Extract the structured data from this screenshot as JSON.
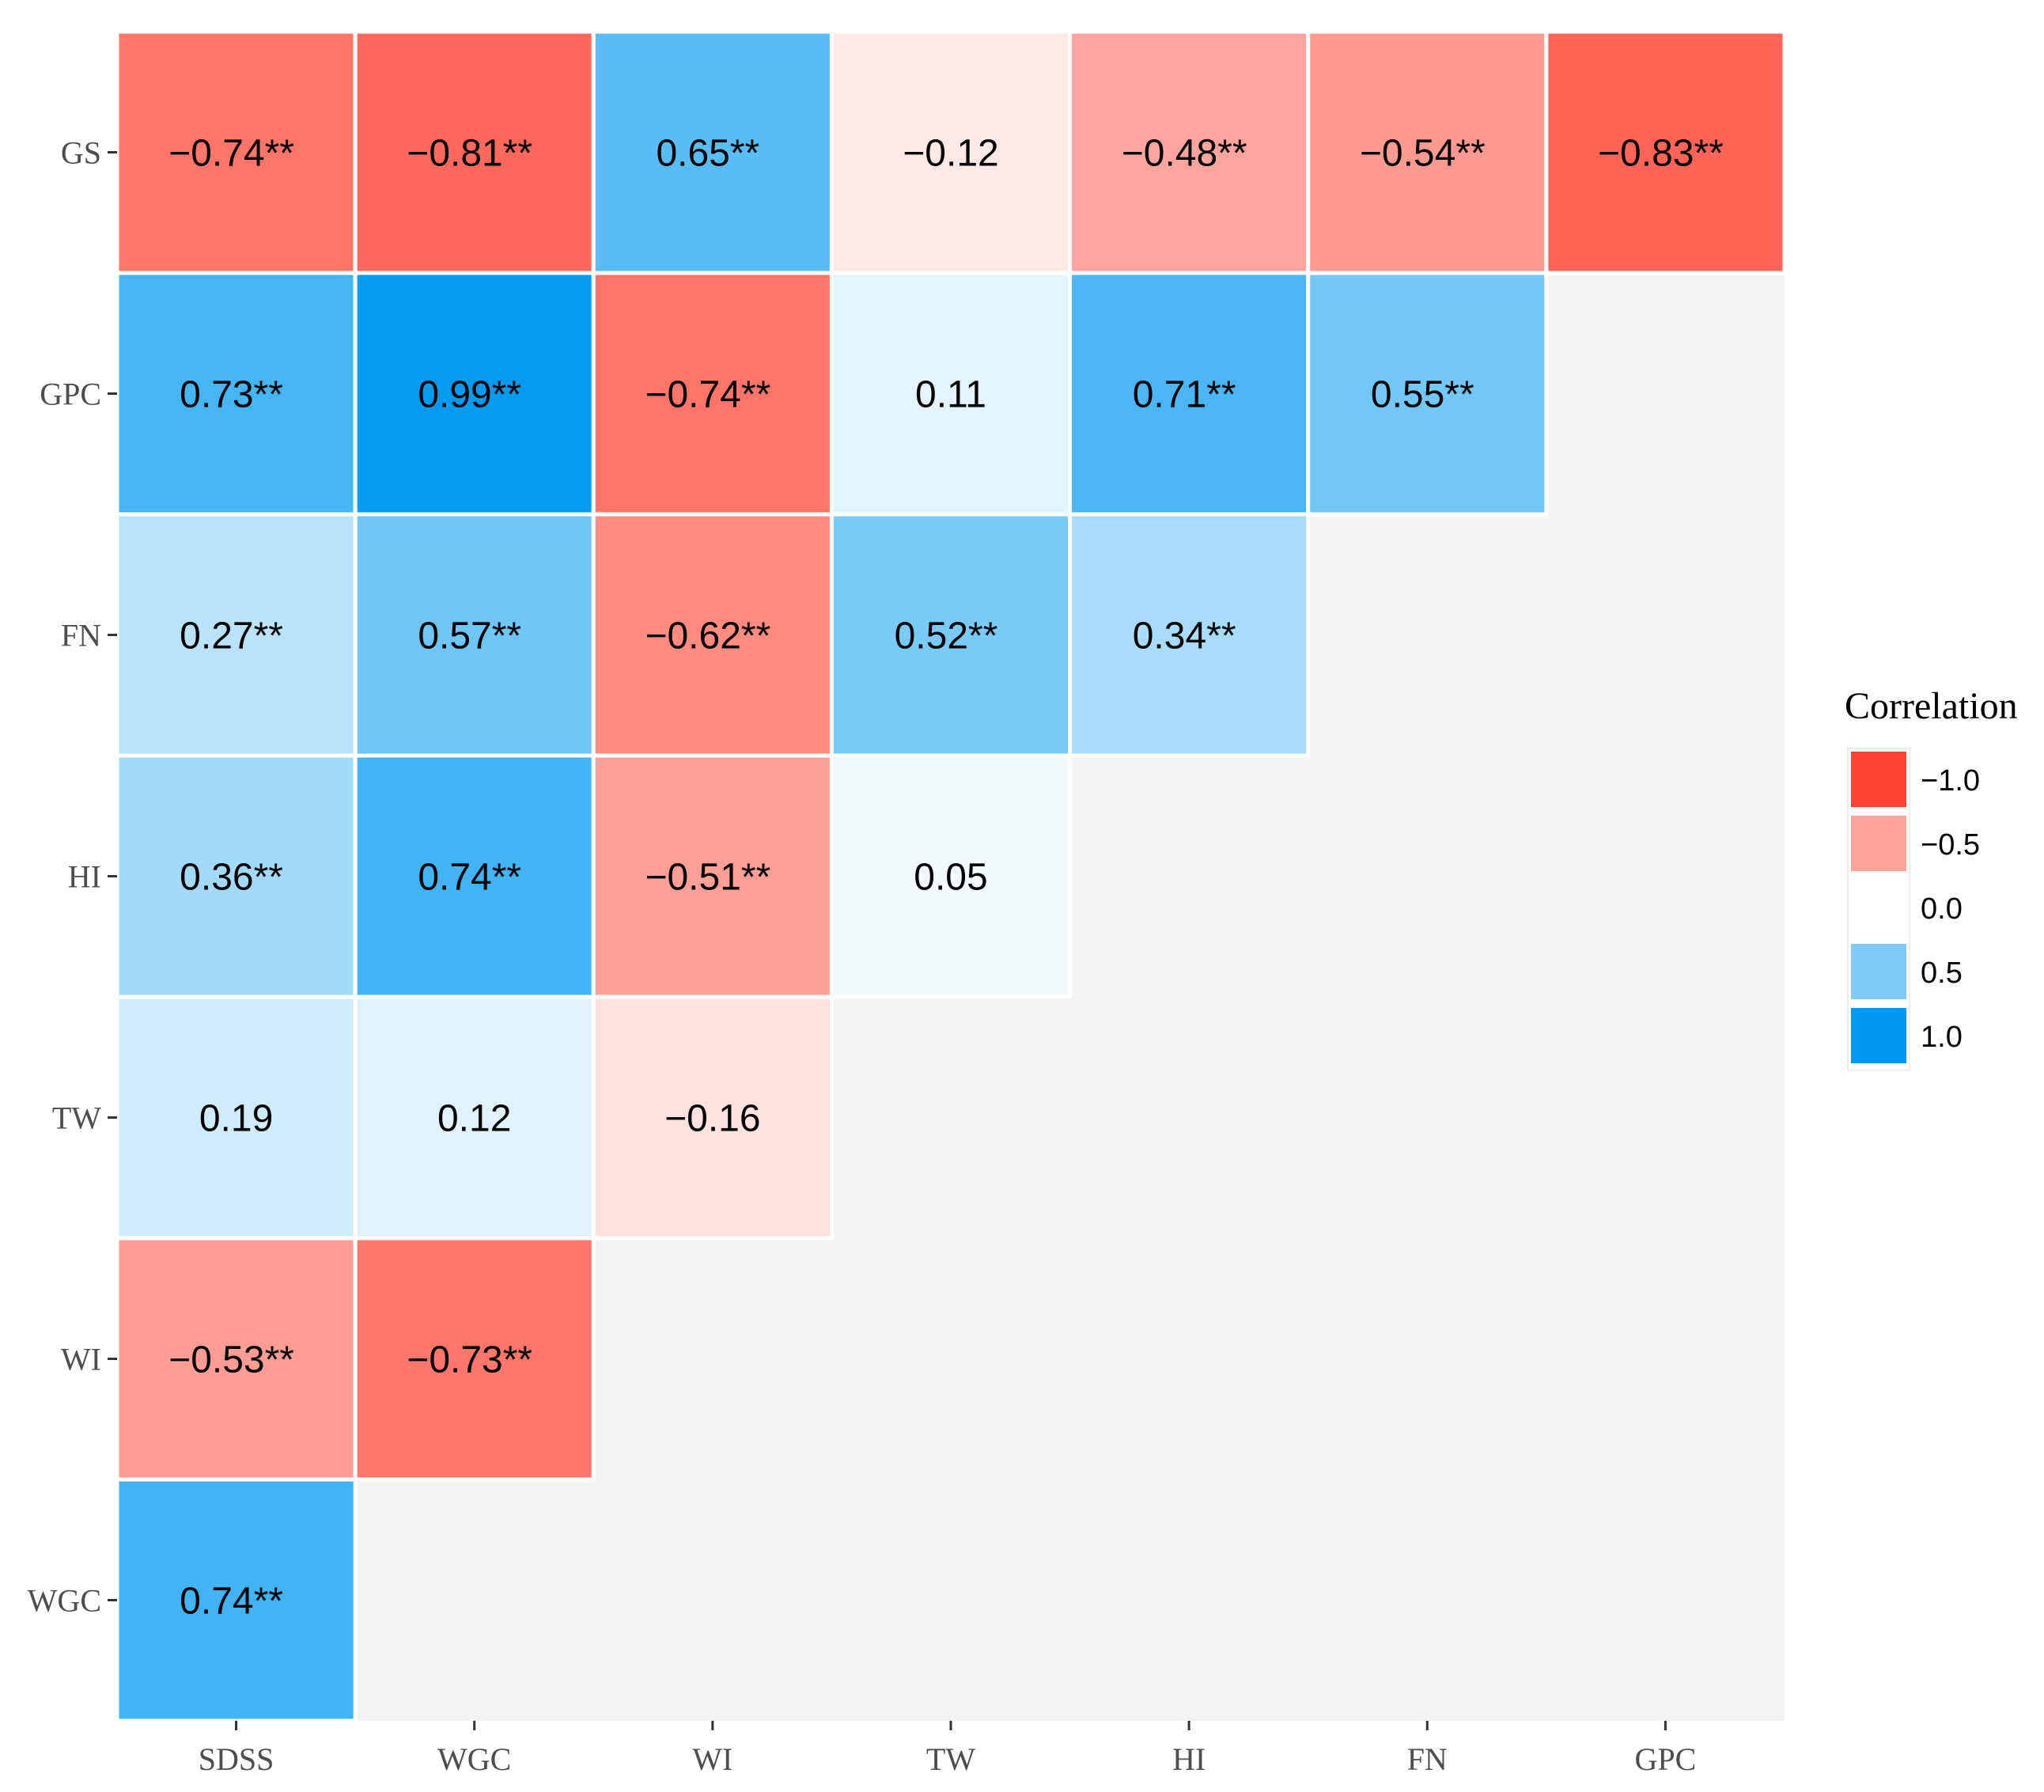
{
  "chart_data": {
    "type": "heatmap",
    "title": "",
    "xlabel": "",
    "ylabel": "",
    "x_categories": [
      "SDSS",
      "WGC",
      "WI",
      "TW",
      "HI",
      "FN",
      "GPC"
    ],
    "y_categories": [
      "GS",
      "GPC",
      "FN",
      "HI",
      "TW",
      "WI",
      "WGC"
    ],
    "cells": [
      {
        "x": "SDSS",
        "y": "GS",
        "value": -0.74,
        "label": "−0.74**"
      },
      {
        "x": "WGC",
        "y": "GS",
        "value": -0.81,
        "label": "−0.81**"
      },
      {
        "x": "WI",
        "y": "GS",
        "value": 0.65,
        "label": "0.65**"
      },
      {
        "x": "TW",
        "y": "GS",
        "value": -0.12,
        "label": "−0.12"
      },
      {
        "x": "HI",
        "y": "GS",
        "value": -0.48,
        "label": "−0.48**"
      },
      {
        "x": "FN",
        "y": "GS",
        "value": -0.54,
        "label": "−0.54**"
      },
      {
        "x": "GPC",
        "y": "GS",
        "value": -0.83,
        "label": "−0.83**"
      },
      {
        "x": "SDSS",
        "y": "GPC",
        "value": 0.73,
        "label": "0.73**"
      },
      {
        "x": "WGC",
        "y": "GPC",
        "value": 0.99,
        "label": "0.99**"
      },
      {
        "x": "WI",
        "y": "GPC",
        "value": -0.74,
        "label": "−0.74**"
      },
      {
        "x": "TW",
        "y": "GPC",
        "value": 0.11,
        "label": "0.11"
      },
      {
        "x": "HI",
        "y": "GPC",
        "value": 0.71,
        "label": "0.71**"
      },
      {
        "x": "FN",
        "y": "GPC",
        "value": 0.55,
        "label": "0.55**"
      },
      {
        "x": "SDSS",
        "y": "FN",
        "value": 0.27,
        "label": "0.27**"
      },
      {
        "x": "WGC",
        "y": "FN",
        "value": 0.57,
        "label": "0.57**"
      },
      {
        "x": "WI",
        "y": "FN",
        "value": -0.62,
        "label": "−0.62**"
      },
      {
        "x": "TW",
        "y": "FN",
        "value": 0.52,
        "label": "0.52**"
      },
      {
        "x": "HI",
        "y": "FN",
        "value": 0.34,
        "label": "0.34**"
      },
      {
        "x": "SDSS",
        "y": "HI",
        "value": 0.36,
        "label": "0.36**"
      },
      {
        "x": "WGC",
        "y": "HI",
        "value": 0.74,
        "label": "0.74**"
      },
      {
        "x": "WI",
        "y": "HI",
        "value": -0.51,
        "label": "−0.51**"
      },
      {
        "x": "TW",
        "y": "HI",
        "value": 0.05,
        "label": "0.05"
      },
      {
        "x": "SDSS",
        "y": "TW",
        "value": 0.19,
        "label": "0.19"
      },
      {
        "x": "WGC",
        "y": "TW",
        "value": 0.12,
        "label": "0.12"
      },
      {
        "x": "WI",
        "y": "TW",
        "value": -0.16,
        "label": "−0.16"
      },
      {
        "x": "SDSS",
        "y": "WI",
        "value": -0.53,
        "label": "−0.53**"
      },
      {
        "x": "WGC",
        "y": "WI",
        "value": -0.73,
        "label": "−0.73**"
      },
      {
        "x": "SDSS",
        "y": "WGC",
        "value": 0.74,
        "label": "0.74**"
      }
    ],
    "color_scale": {
      "min": -1.0,
      "mid": 0.0,
      "max": 1.0,
      "low_color": "#ff4433",
      "mid_color": "#ffffff",
      "high_color": "#0099f0"
    },
    "panel_background": "#f5f4f3",
    "legend": {
      "title": "Correlation",
      "position": "right",
      "entries": [
        {
          "value": -1.0,
          "label": "−1.0"
        },
        {
          "value": -0.5,
          "label": "−0.5"
        },
        {
          "value": 0.0,
          "label": "0.0"
        },
        {
          "value": 0.5,
          "label": "0.5"
        },
        {
          "value": 1.0,
          "label": "1.0"
        }
      ]
    }
  }
}
